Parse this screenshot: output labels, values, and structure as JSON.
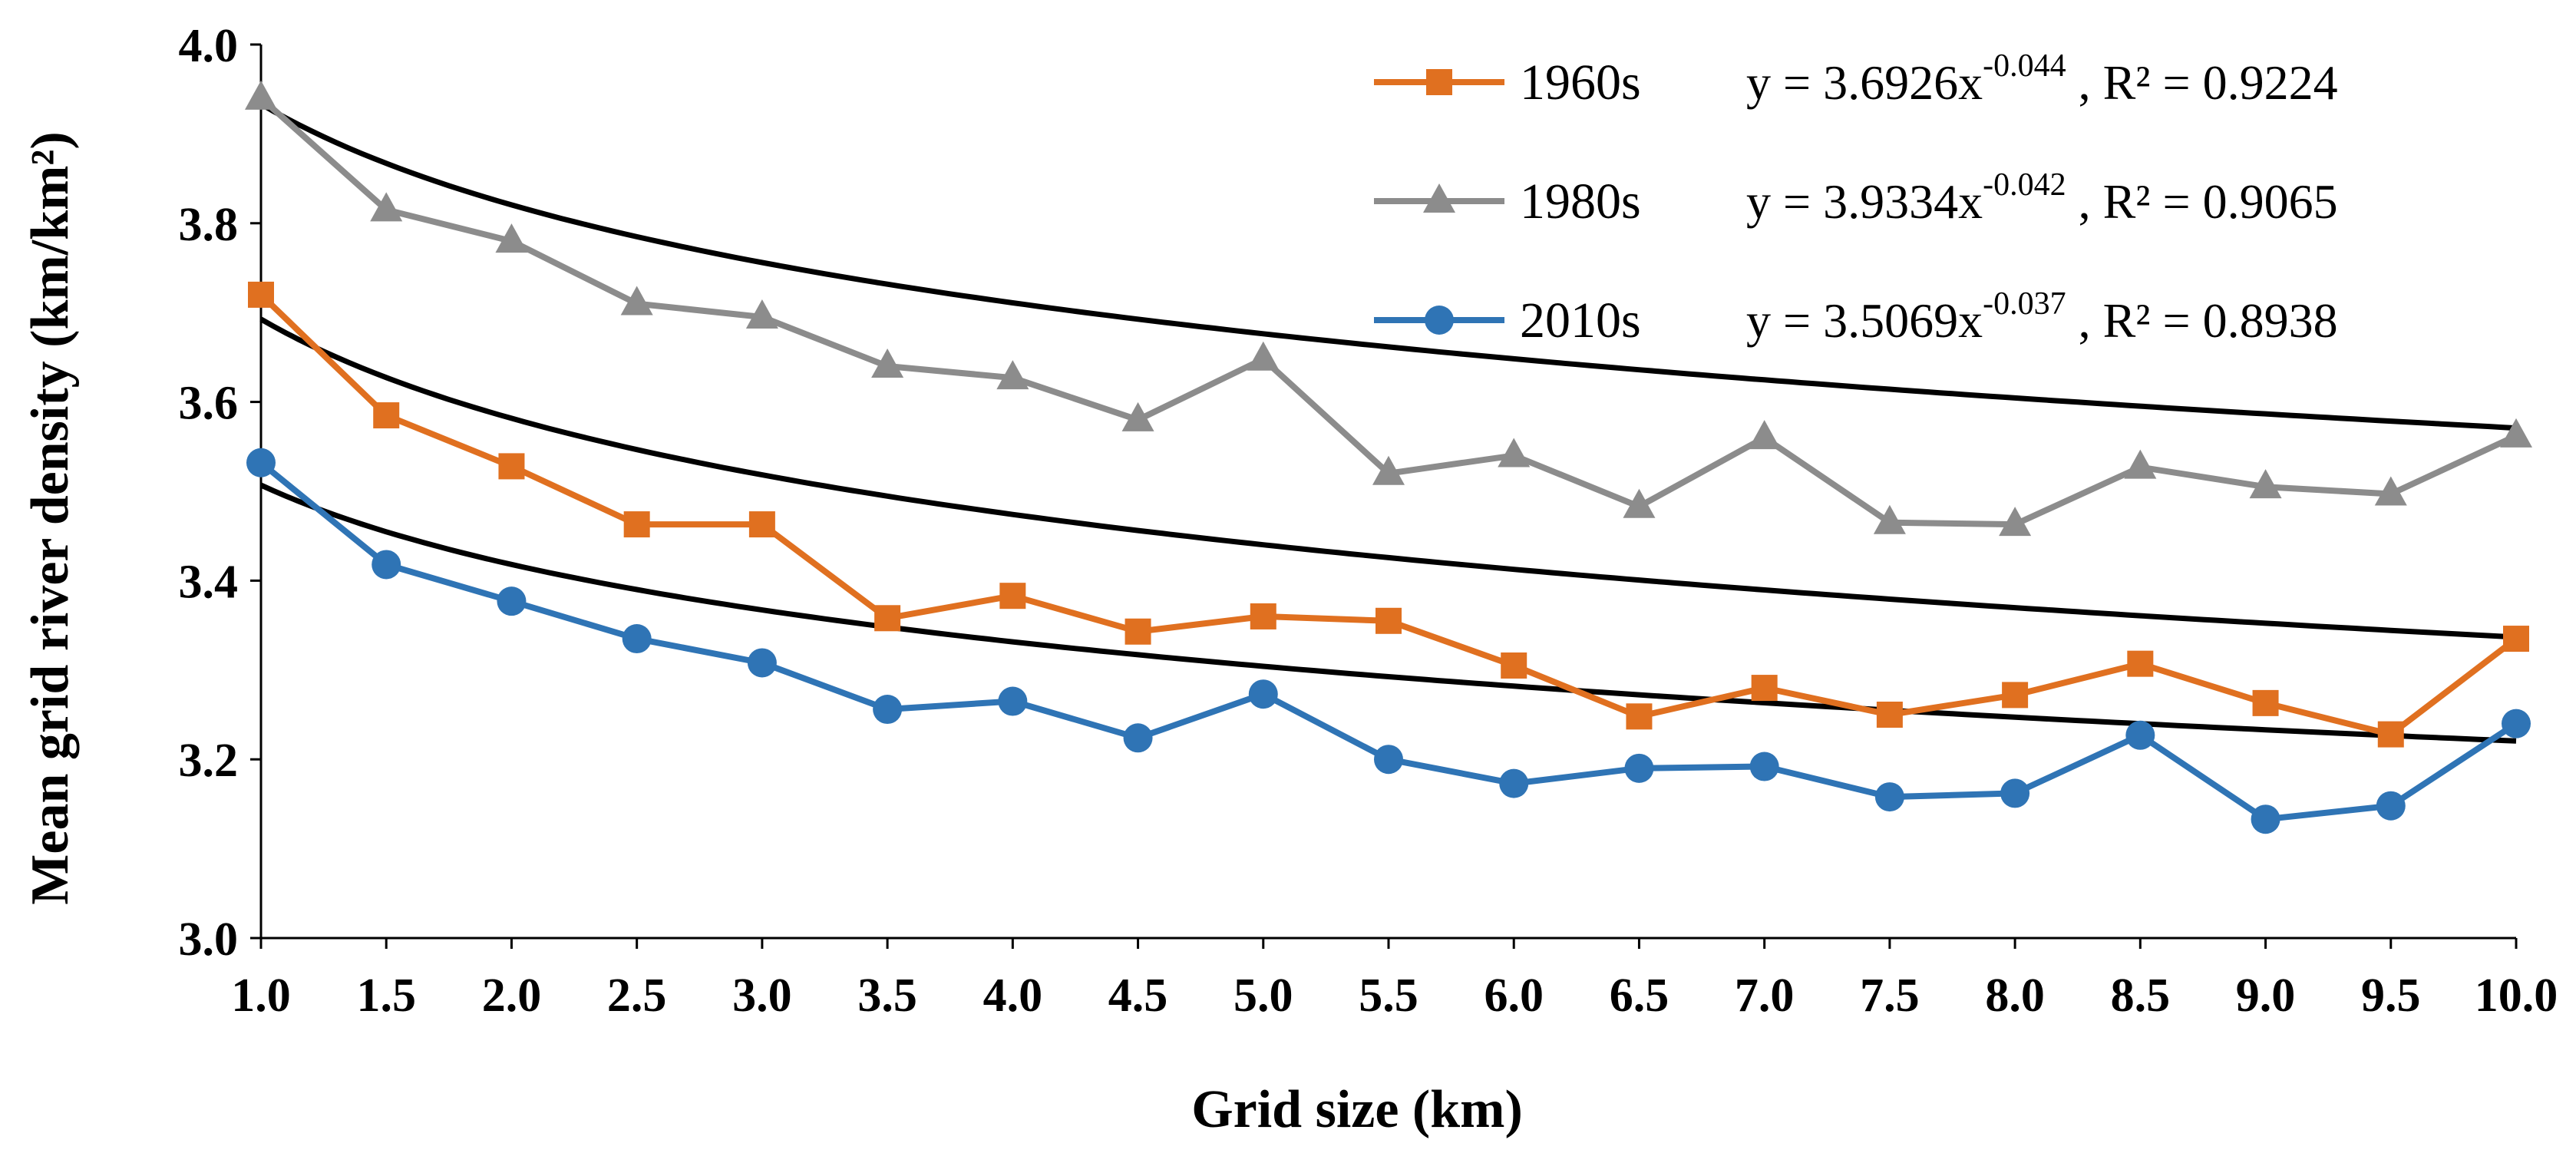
{
  "chart_data": {
    "type": "line",
    "title": "",
    "xlabel": "Grid size  (km)",
    "ylabel": "Mean grid river density  (km/km²)",
    "x": [
      1.0,
      1.5,
      2.0,
      2.5,
      3.0,
      3.5,
      4.0,
      4.5,
      5.0,
      5.5,
      6.0,
      6.5,
      7.0,
      7.5,
      8.0,
      8.5,
      9.0,
      9.5,
      10.0
    ],
    "x_tick_labels": [
      "1.0",
      "1.5",
      "2.0",
      "2.5",
      "3.0",
      "3.5",
      "4.0",
      "4.5",
      "5.0",
      "5.5",
      "6.0",
      "6.5",
      "7.0",
      "7.5",
      "8.0",
      "8.5",
      "9.0",
      "9.5",
      "10.0"
    ],
    "y_tick_labels": [
      "3.0",
      "3.2",
      "3.4",
      "3.6",
      "3.8",
      "4.0"
    ],
    "xlim": [
      1.0,
      10.0
    ],
    "ylim": [
      3.0,
      4.0
    ],
    "grid": false,
    "legend_position": "top-right",
    "series": [
      {
        "name": "1960s",
        "color": "#E07020",
        "marker": "square",
        "values": [
          3.72,
          3.585,
          3.528,
          3.463,
          3.463,
          3.358,
          3.383,
          3.343,
          3.36,
          3.355,
          3.305,
          3.248,
          3.28,
          3.25,
          3.272,
          3.307,
          3.263,
          3.228,
          3.335
        ],
        "fit": {
          "a": 3.6926,
          "b": -0.044,
          "r2": "0.9224"
        },
        "eq_prefix": "y = 3.6926x",
        "eq_exp": "-0.044",
        "eq_suffix": " , R² = 0.9224"
      },
      {
        "name": "1980s",
        "color": "#8C8C8C",
        "marker": "triangle",
        "values": [
          3.94,
          3.815,
          3.78,
          3.71,
          3.695,
          3.64,
          3.627,
          3.58,
          3.648,
          3.52,
          3.54,
          3.483,
          3.56,
          3.465,
          3.463,
          3.527,
          3.505,
          3.497,
          3.562
        ],
        "fit": {
          "a": 3.9334,
          "b": -0.042,
          "r2": "0.9065"
        },
        "eq_prefix": "y = 3.9334x",
        "eq_exp": "-0.042",
        "eq_suffix": " , R² = 0.9065"
      },
      {
        "name": "2010s",
        "color": "#2F74B5",
        "marker": "circle",
        "values": [
          3.532,
          3.418,
          3.377,
          3.335,
          3.308,
          3.256,
          3.265,
          3.224,
          3.273,
          3.2,
          3.173,
          3.19,
          3.192,
          3.158,
          3.162,
          3.227,
          3.133,
          3.148,
          3.24
        ],
        "fit": {
          "a": 3.5069,
          "b": -0.037,
          "r2": "0.8938"
        },
        "eq_prefix": "y = 3.5069x",
        "eq_exp": "-0.037",
        "eq_suffix": " , R² = 0.8938"
      }
    ]
  }
}
